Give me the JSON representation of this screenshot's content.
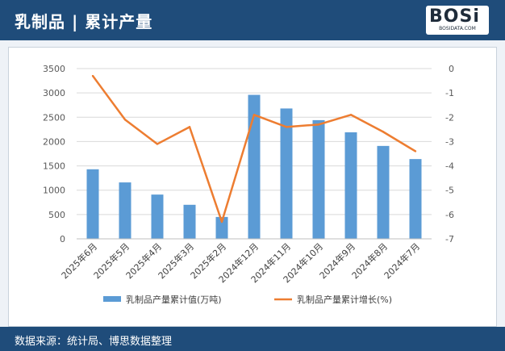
{
  "header": {
    "title": "乳制品 | 累计产量"
  },
  "logo": {
    "word": "BOSi",
    "sub": "BOSIDATA.COM"
  },
  "footer": {
    "source": "数据来源：统计局、博思数据整理"
  },
  "colors": {
    "bar": "#5b9bd5",
    "line": "#ed7d31",
    "header": "#1f4c7a"
  },
  "chart_data": {
    "type": "bar",
    "categories": [
      "2025年6月",
      "2025年5月",
      "2025年4月",
      "2025年3月",
      "2025年2月",
      "2024年12月",
      "2024年11月",
      "2024年10月",
      "2024年9月",
      "2024年8月",
      "2024年7月"
    ],
    "series": [
      {
        "name": "乳制品产量累计值(万吨)",
        "type": "bar",
        "axis": "left",
        "values": [
          1430,
          1160,
          910,
          700,
          450,
          2960,
          2680,
          2440,
          2190,
          1910,
          1640
        ]
      },
      {
        "name": "乳制品产量累计增长(%)",
        "type": "line",
        "axis": "right",
        "values": [
          -0.3,
          -2.1,
          -3.1,
          -2.4,
          -6.3,
          -1.9,
          -2.4,
          -2.3,
          -1.9,
          -2.6,
          -3.4
        ]
      }
    ],
    "ylim_left": [
      0,
      3500
    ],
    "yticks_left": [
      "3500",
      "3000",
      "2500",
      "2000",
      "1500",
      "1000",
      "500",
      "0"
    ],
    "ylim_right": [
      -7,
      0
    ],
    "yticks_right": [
      "0",
      "-1",
      "-2",
      "-3",
      "-4",
      "-5",
      "-6",
      "-7"
    ],
    "grid": true,
    "legend_position": "bottom"
  }
}
